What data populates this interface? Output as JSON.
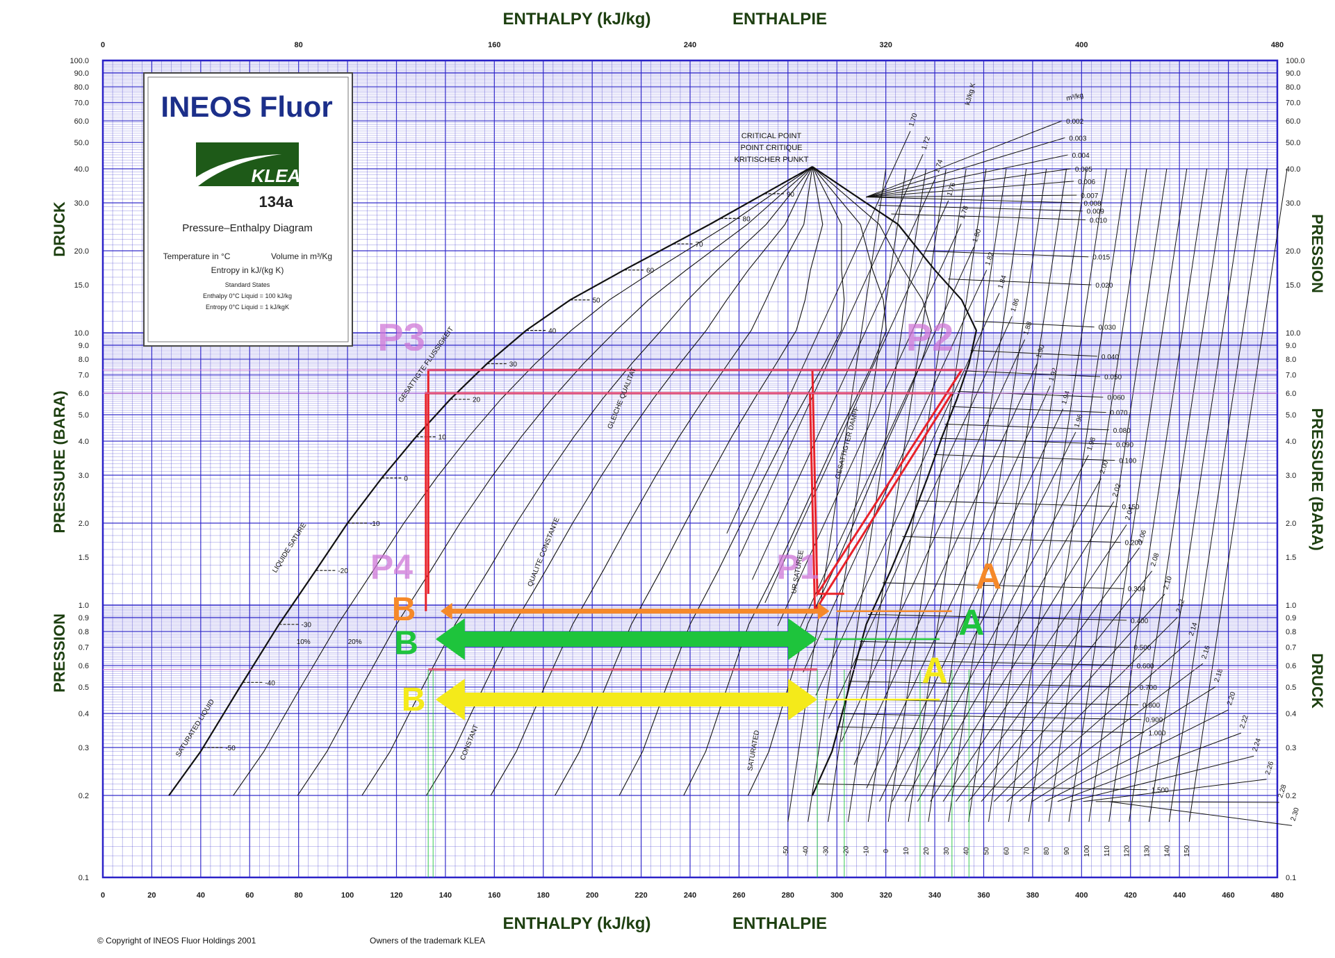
{
  "header": {
    "enthalpy_title": "ENTHALPY (kJ/kg)",
    "enthalpie_title": "ENTHALPIE"
  },
  "axis_labels": {
    "left_top": "DRUCK",
    "left_mid": "PRESSURE (BARA)",
    "left_bottom": "PRESSION",
    "right_top": "PRESSION",
    "right_mid": "PRESSURE (BARA)",
    "right_bottom": "DRUCK"
  },
  "legend_box": {
    "brand": "INEOS Fluor",
    "logo_text": "KLEA",
    "product": "134a",
    "subtitle": "Pressure–Enthalpy Diagram",
    "temp_unit": "Temperature in °C",
    "volume_unit": "Volume in m³/Kg",
    "entropy_unit": "Entropy in kJ/(kg K)",
    "standard_states": "Standard States",
    "std_enthalpy": "Enthalpy 0°C Liquid = 100 kJ/kg",
    "std_entropy": "Entropy 0°C Liquid = 1 kJ/kgK"
  },
  "critical_point": {
    "line1": "CRITICAL POINT",
    "line2": "POINT CRITIQUE",
    "line3": "KRITISCHER PUNKT"
  },
  "curve_labels": {
    "saturated_liquid": "SATURATED LIQUID",
    "liquide_sature": "LIQUIDE SATURE",
    "gesattigte_flussigkeit": "GESATTIGTE FLUSSIGKEIT",
    "constant_quality": "CONSTANT",
    "qualite_constante": "QUALITE CONSTANTE",
    "gleiche_qualitat": "GLEICHE QUALITAT",
    "saturated_vapour": "SATURATED",
    "vapeur_saturee": "UR SATUREE",
    "gesattigter_dampf": "GESATTIGTER DAMPF",
    "entropy_unit_label": "kJ/kg K",
    "volume_unit_label": "m³/kg"
  },
  "footer": {
    "copyright": "© Copyright of INEOS Fluor Holdings 2001",
    "trademark": "Owners of the trademark KLEA"
  },
  "annotations": {
    "P3": "P3",
    "P2": "P2",
    "P4": "P4",
    "P1": "P1",
    "orange_A": "A",
    "orange_B": "B",
    "green_A": "A",
    "green_B": "B",
    "yellow_A": "A",
    "yellow_B": "B"
  },
  "colors": {
    "grid": "#2b22c8",
    "curve": "#111111",
    "red": "#e8222a",
    "orange": "#f5892a",
    "green": "#1ec43c",
    "yellow": "#f4ea1a",
    "pink": "#cf78d8",
    "title": "#1d3f10"
  },
  "chart_data": {
    "type": "line",
    "title": "ENTHALPY (kJ/kg)",
    "xlabel": "ENTHALPY (kJ/kg)",
    "ylabel": "PRESSURE (BARA)",
    "xlim": [
      0,
      480
    ],
    "ylim": [
      0.1,
      100
    ],
    "y_scale": "log",
    "grid": true,
    "x_ticks_top": [
      "0",
      "80",
      "160",
      "240",
      "320",
      "400",
      "480"
    ],
    "x_ticks_bottom": [
      "0",
      "20",
      "40",
      "60",
      "80",
      "100",
      "120",
      "140",
      "160",
      "180",
      "200",
      "220",
      "240",
      "260",
      "280",
      "300",
      "320",
      "340",
      "360",
      "380",
      "400",
      "420",
      "440",
      "460",
      "480"
    ],
    "y_ticks": [
      "100.0",
      "90.0",
      "80.0",
      "70.0",
      "60.0",
      "50.0",
      "40.0",
      "30.0",
      "20.0",
      "15.0",
      "10.0",
      "9.0",
      "8.0",
      "7.0",
      "6.0",
      "5.0",
      "4.0",
      "3.0",
      "2.0",
      "1.5",
      "1.0",
      "0.9",
      "0.8",
      "0.7",
      "0.6",
      "0.5",
      "0.4",
      "0.3",
      "0.2",
      "0.1"
    ],
    "saturation_dome": {
      "liquid_h": [
        27,
        40,
        56,
        72,
        87,
        100,
        114,
        128,
        142,
        157,
        173,
        191,
        213,
        248,
        290
      ],
      "liquid_p": [
        0.2,
        0.29,
        0.5,
        0.85,
        1.34,
        2.0,
        2.93,
        4.15,
        5.7,
        7.7,
        10.2,
        13.2,
        17.0,
        25.0,
        40.7
      ],
      "vapour_h": [
        290,
        298,
        305,
        312,
        322,
        330,
        337,
        343,
        349,
        354,
        357,
        351,
        340,
        325,
        290
      ],
      "vapour_p": [
        0.2,
        0.29,
        0.5,
        0.85,
        1.34,
        2.0,
        2.93,
        4.15,
        5.7,
        7.7,
        10.2,
        13.2,
        17.0,
        25.0,
        40.7
      ]
    },
    "saturation_temperatures_C": [
      "-50",
      "-40",
      "-30",
      "-20",
      "-10",
      "0",
      "10",
      "20",
      "30",
      "40",
      "50",
      "60",
      "70",
      "80",
      "90",
      "100",
      "110",
      "120",
      "130",
      "140",
      "150"
    ],
    "isentropes_kJ_kgK": [
      "1.70",
      "1.72",
      "1.74",
      "1.76",
      "1.78",
      "1.80",
      "1.82",
      "1.84",
      "1.86",
      "1.88",
      "1.90",
      "1.92",
      "1.94",
      "1.96",
      "1.98",
      "2.00",
      "2.02",
      "2.04",
      "2.06",
      "2.08",
      "2.10",
      "2.12",
      "2.14",
      "2.16",
      "2.18",
      "2.20",
      "2.22",
      "2.24",
      "2.26",
      "2.28",
      "2.30"
    ],
    "isochores_m3_kg": [
      "0.002",
      "0.003",
      "0.004",
      "0.005",
      "0.006",
      "0.007",
      "0.008",
      "0.009",
      "0.010",
      "0.015",
      "0.020",
      "0.030",
      "0.040",
      "0.050",
      "0.060",
      "0.070",
      "0.080",
      "0.090",
      "0.100",
      "0.150",
      "0.200",
      "0.300",
      "0.400",
      "0.500",
      "0.600",
      "0.700",
      "0.800",
      "0.900",
      "1.000",
      "1.500"
    ],
    "quality_lines": [
      "10%",
      "20%"
    ],
    "series": [
      {
        "name": "P3",
        "h": [
          133,
          290,
          292,
          351,
          133,
          133
        ],
        "p": [
          7.3,
          7.3,
          1.1,
          7.3,
          7.3,
          1.1
        ]
      },
      {
        "name": "P2",
        "h": [
          132,
          289,
          291,
          347,
          132,
          132
        ],
        "p": [
          6.0,
          6.0,
          0.95,
          6.0,
          6.0,
          0.95
        ]
      },
      {
        "name": "P4",
        "h": [
          133,
          292
        ],
        "p": [
          0.58,
          0.58
        ]
      },
      {
        "name": "P1",
        "h": [
          292,
          303
        ],
        "p": [
          1.1,
          1.1
        ]
      }
    ],
    "arrows": [
      {
        "name": "A",
        "color": "orange",
        "h": [
          138,
          297
        ],
        "p": [
          0.95,
          0.95
        ]
      },
      {
        "name": "A",
        "color": "green",
        "h": [
          136,
          292
        ],
        "p": [
          0.75,
          0.75
        ]
      },
      {
        "name": "A",
        "color": "yellow",
        "h": [
          136,
          292
        ],
        "p": [
          0.45,
          0.45
        ]
      }
    ]
  }
}
